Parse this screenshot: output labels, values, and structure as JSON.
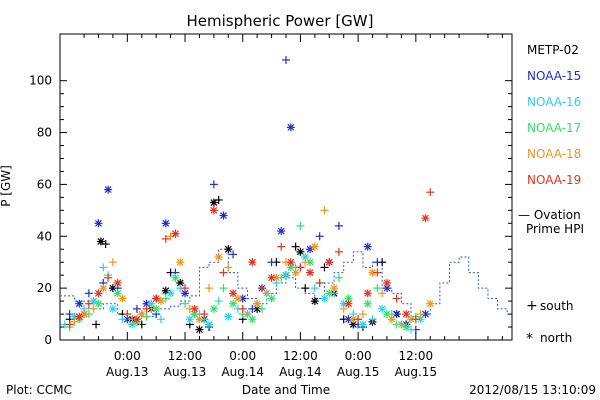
{
  "chart_data": {
    "type": "scatter",
    "title": "Hemispheric Power [GW]",
    "ylabel": "P [GW]",
    "xlabel": "Date and Time",
    "ylim": [
      0,
      118
    ],
    "xlim_hours": [
      -14,
      80
    ],
    "y_ticks": [
      0,
      20,
      40,
      60,
      80,
      100
    ],
    "x_ticks": [
      {
        "hour": 0,
        "time": "0:00",
        "date": "Aug.13"
      },
      {
        "hour": 12,
        "time": "12:00",
        "date": "Aug.13"
      },
      {
        "hour": 24,
        "time": "0:00",
        "date": "Aug.14"
      },
      {
        "hour": 36,
        "time": "12:00",
        "date": "Aug.14"
      },
      {
        "hour": 48,
        "time": "0:00",
        "date": "Aug.15"
      },
      {
        "hour": 60,
        "time": "12:00",
        "date": "Aug.15"
      }
    ],
    "footer_left": "Plot: CCMC",
    "footer_right": "2012/08/15 13:10:09",
    "legend_south": "south",
    "legend_north": "north",
    "ovation_label_1": "— Ovation",
    "ovation_label_2": "Prime HPI",
    "ovation_color": "#1f5fd0",
    "series": [
      {
        "name": "METP-02",
        "color": "#000000",
        "x": [
          -12,
          -9,
          -6.5,
          -5.5,
          -4.5,
          -3,
          -1,
          1,
          3,
          5,
          6,
          8,
          9,
          11,
          13,
          15,
          17,
          18,
          19,
          21,
          24,
          27,
          31,
          33,
          35,
          36,
          37,
          39,
          41,
          43,
          45,
          47,
          49,
          51,
          53,
          56,
          58
        ],
        "y": [
          8,
          10,
          6,
          38,
          37,
          20,
          10,
          8,
          6,
          12,
          16,
          19,
          26,
          22,
          6,
          4,
          5,
          53,
          54,
          35,
          8,
          12,
          30,
          25,
          36,
          34,
          20,
          15,
          28,
          18,
          8,
          6,
          5,
          7,
          30,
          10,
          6
        ]
      },
      {
        "name": "NOAA-15",
        "color": "#1a2fd6",
        "x": [
          -12,
          -10,
          -8,
          -6,
          -5,
          -4,
          -2,
          0,
          2,
          4,
          6,
          8,
          10,
          12,
          14,
          16,
          18,
          20,
          22,
          24,
          26,
          28,
          30,
          32,
          33,
          34,
          36,
          38,
          40,
          42,
          44,
          46,
          48,
          50,
          52,
          54,
          56,
          58,
          60,
          62
        ],
        "y": [
          10,
          14,
          18,
          45,
          22,
          58,
          20,
          8,
          12,
          14,
          10,
          45,
          26,
          18,
          10,
          8,
          60,
          48,
          33,
          16,
          12,
          20,
          30,
          42,
          108,
          82,
          28,
          35,
          40,
          30,
          44,
          8,
          6,
          36,
          30,
          20,
          10,
          6,
          4,
          10
        ]
      },
      {
        "name": "NOAA-16",
        "color": "#2ed0f0",
        "x": [
          -13,
          -11,
          -9,
          -7,
          -5,
          -3,
          -1,
          1,
          3,
          5,
          7,
          9,
          11,
          13,
          15,
          17,
          19,
          21,
          23,
          25,
          27,
          29,
          31,
          33,
          35,
          37,
          39,
          41,
          43,
          45,
          47,
          49,
          51,
          53,
          55,
          57,
          59,
          61
        ],
        "y": [
          6,
          9,
          12,
          15,
          28,
          12,
          8,
          6,
          10,
          14,
          8,
          18,
          20,
          8,
          10,
          6,
          15,
          9,
          12,
          10,
          14,
          18,
          22,
          25,
          28,
          32,
          20,
          16,
          18,
          14,
          10,
          6,
          8,
          12,
          10,
          6,
          4,
          8
        ]
      },
      {
        "name": "NOAA-17",
        "color": "#33e06a",
        "x": [
          -12,
          -10,
          -8,
          -6,
          -4,
          -2,
          0,
          2,
          4,
          6,
          8,
          10,
          12,
          14,
          16,
          18,
          20,
          22,
          24,
          26,
          28,
          30,
          32,
          34,
          36,
          38,
          40,
          42,
          44,
          46,
          48,
          50,
          52,
          54,
          56,
          58,
          60
        ],
        "y": [
          5,
          8,
          10,
          14,
          25,
          18,
          10,
          7,
          9,
          12,
          16,
          24,
          14,
          10,
          8,
          12,
          20,
          14,
          10,
          8,
          12,
          16,
          24,
          28,
          44,
          30,
          22,
          18,
          24,
          16,
          8,
          14,
          20,
          10,
          6,
          5,
          9
        ]
      },
      {
        "name": "NOAA-18",
        "color": "#f0961e",
        "x": [
          -11,
          -9,
          -7,
          -5,
          -3,
          -1,
          1,
          3,
          5,
          7,
          9,
          11,
          13,
          15,
          17,
          19,
          21,
          23,
          25,
          27,
          29,
          31,
          33,
          35,
          37,
          39,
          41,
          43,
          45,
          47,
          49,
          51,
          53,
          55,
          57,
          59,
          61,
          63
        ],
        "y": [
          7,
          10,
          12,
          20,
          30,
          16,
          8,
          10,
          12,
          15,
          40,
          30,
          12,
          8,
          20,
          32,
          28,
          16,
          10,
          14,
          18,
          24,
          30,
          26,
          30,
          36,
          50,
          20,
          12,
          8,
          10,
          26,
          18,
          8,
          6,
          8,
          10,
          14
        ]
      },
      {
        "name": "NOAA-19",
        "color": "#e8321e",
        "x": [
          -12,
          -10,
          -8,
          -6,
          -4,
          -2,
          0,
          2,
          4,
          6,
          8,
          10,
          12,
          14,
          16,
          18,
          20,
          22,
          24,
          26,
          28,
          30,
          32,
          34,
          36,
          38,
          40,
          42,
          44,
          46,
          48,
          50,
          52,
          54,
          56,
          58,
          60,
          62,
          63
        ],
        "y": [
          6,
          9,
          14,
          18,
          24,
          22,
          10,
          8,
          12,
          16,
          39,
          41,
          20,
          12,
          10,
          50,
          26,
          18,
          12,
          30,
          20,
          24,
          36,
          30,
          28,
          26,
          22,
          30,
          34,
          14,
          8,
          18,
          26,
          22,
          16,
          10,
          8,
          47,
          57
        ]
      }
    ],
    "ovation": {
      "x": [
        -14,
        -11,
        -8,
        -5,
        -2,
        0,
        3,
        6,
        9,
        11,
        13,
        15,
        17,
        19,
        21,
        23,
        25,
        27,
        29,
        31,
        33,
        35,
        37,
        39,
        41,
        43,
        45,
        47,
        49,
        51,
        53,
        55,
        57,
        59,
        61,
        63,
        65,
        67,
        69,
        71,
        73,
        75,
        77,
        79
      ],
      "y": [
        17,
        15,
        12,
        14,
        10,
        8,
        9,
        12,
        13,
        15,
        17,
        28,
        30,
        35,
        26,
        20,
        16,
        14,
        18,
        22,
        24,
        20,
        18,
        16,
        22,
        26,
        30,
        34,
        28,
        30,
        20,
        18,
        14,
        8,
        10,
        14,
        22,
        30,
        32,
        26,
        20,
        16,
        12,
        10
      ]
    }
  }
}
